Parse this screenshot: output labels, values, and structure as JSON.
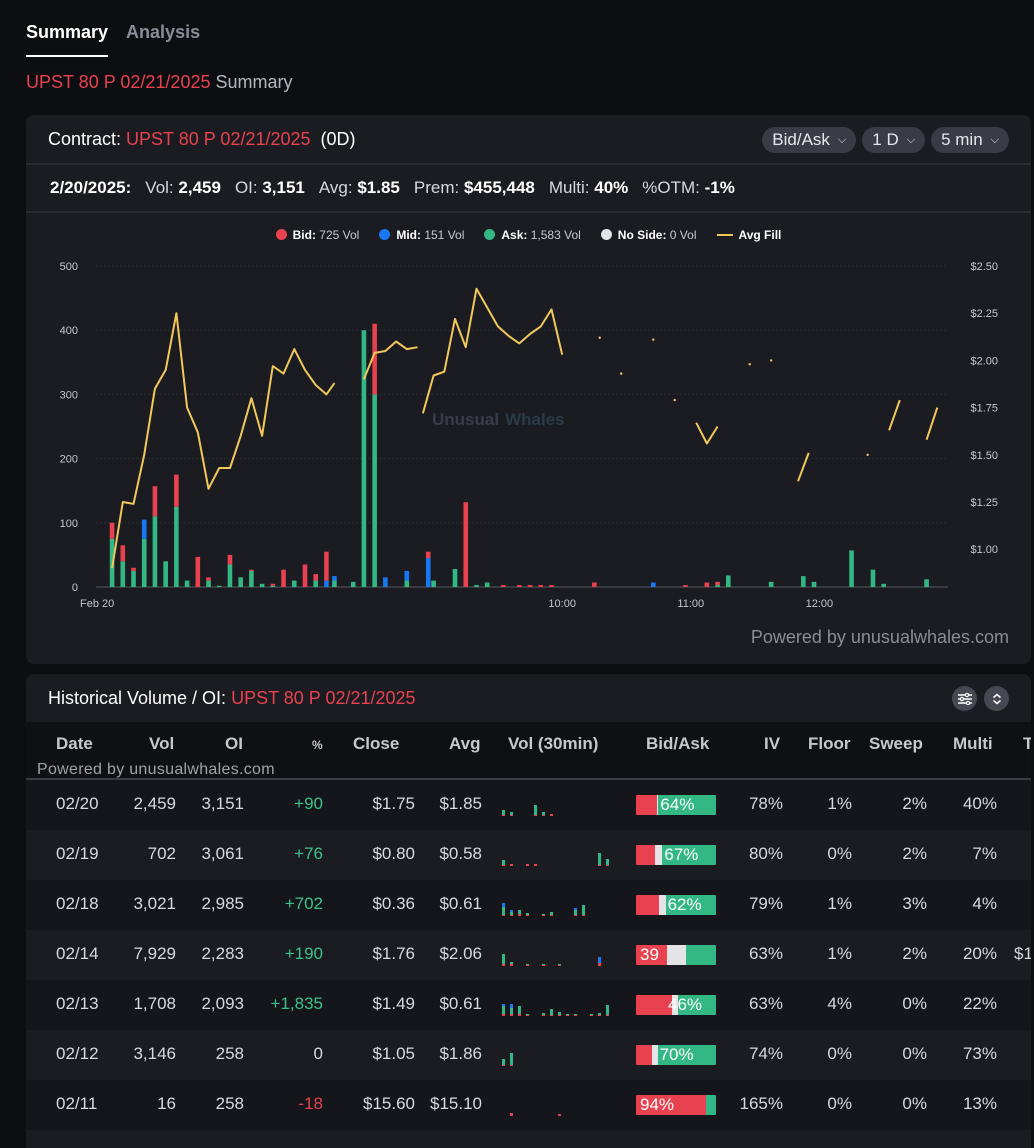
{
  "tabs": [
    "Summary",
    "Analysis"
  ],
  "subtitle": {
    "contract": "UPST 80 P 02/21/2025",
    "label": "Summary"
  },
  "contract_header": {
    "label": "Contract:",
    "contract": "UPST 80 P 02/21/2025",
    "dte": "(0D)",
    "controls": [
      "Bid/Ask",
      "1 D",
      "5 min"
    ]
  },
  "stats": {
    "date": "2/20/2025:",
    "vol_label": "Vol:",
    "vol": "2,459",
    "oi_label": "OI:",
    "oi": "3,151",
    "avg_label": "Avg:",
    "avg": "$1.85",
    "prem_label": "Prem:",
    "prem": "$455,448",
    "multi_label": "Multi:",
    "multi": "40%",
    "otm_label": "%OTM:",
    "otm": "-1%"
  },
  "legend": [
    {
      "key": "Bid:",
      "value": "725 Vol",
      "color": "#e8414f",
      "shape": "dot"
    },
    {
      "key": "Mid:",
      "value": "151 Vol",
      "color": "#1877f2",
      "shape": "dot"
    },
    {
      "key": "Ask:",
      "value": "1,583 Vol",
      "color": "#33b785",
      "shape": "dot"
    },
    {
      "key": "No Side:",
      "value": "0 Vol",
      "color": "#e4e4e8",
      "shape": "dot"
    },
    {
      "key": "Avg Fill",
      "value": "",
      "color": "#f2c85b",
      "shape": "line"
    }
  ],
  "chart_watermark": {
    "a": "Unusual",
    "b": "Whales"
  },
  "chart_data": {
    "type": "bar",
    "title": "",
    "xlabel": "",
    "ylabel": "Volume",
    "ylim": [
      0,
      500
    ],
    "y_ticks": [
      "0",
      "100",
      "200",
      "300",
      "400",
      "500"
    ],
    "y2lim": [
      0.8,
      2.5
    ],
    "y2_ticks": [
      "$1.00",
      "$1.25",
      "$1.50",
      "$1.75",
      "$2.00",
      "$2.25",
      "$2.50"
    ],
    "x_ticks": [
      {
        "t": 0,
        "label": "Feb 20"
      },
      {
        "t": 87,
        "label": "10:00"
      },
      {
        "t": 111,
        "label": "11:00"
      },
      {
        "t": 135,
        "label": "12:00"
      }
    ],
    "x_range": [
      0,
      159
    ],
    "bars": [
      {
        "t": 3,
        "ask": 75,
        "mid": 0,
        "bid": 25
      },
      {
        "t": 5,
        "ask": 40,
        "mid": 0,
        "bid": 25
      },
      {
        "t": 7,
        "ask": 25,
        "mid": 0,
        "bid": 5
      },
      {
        "t": 9,
        "ask": 75,
        "mid": 30,
        "bid": 0
      },
      {
        "t": 11,
        "ask": 110,
        "mid": 0,
        "bid": 47
      },
      {
        "t": 13,
        "ask": 40,
        "mid": 0,
        "bid": 0
      },
      {
        "t": 15,
        "ask": 125,
        "mid": 0,
        "bid": 50
      },
      {
        "t": 17,
        "ask": 10,
        "mid": 0,
        "bid": 0
      },
      {
        "t": 19,
        "ask": 0,
        "mid": 0,
        "bid": 47
      },
      {
        "t": 21,
        "ask": 10,
        "mid": 0,
        "bid": 5
      },
      {
        "t": 23,
        "ask": 2,
        "mid": 0,
        "bid": 0
      },
      {
        "t": 25,
        "ask": 35,
        "mid": 0,
        "bid": 15
      },
      {
        "t": 27,
        "ask": 15,
        "mid": 0,
        "bid": 0
      },
      {
        "t": 29,
        "ask": 25,
        "mid": 0,
        "bid": 2
      },
      {
        "t": 31,
        "ask": 5,
        "mid": 0,
        "bid": 0
      },
      {
        "t": 33,
        "ask": 2,
        "mid": 0,
        "bid": 3
      },
      {
        "t": 35,
        "ask": 0,
        "mid": 0,
        "bid": 27
      },
      {
        "t": 37,
        "ask": 10,
        "mid": 0,
        "bid": 0
      },
      {
        "t": 39,
        "ask": 0,
        "mid": 0,
        "bid": 35
      },
      {
        "t": 41,
        "ask": 10,
        "mid": 0,
        "bid": 10
      },
      {
        "t": 43,
        "ask": 0,
        "mid": 10,
        "bid": 45
      },
      {
        "t": 44.5,
        "ask": 10,
        "mid": 7,
        "bid": 0
      },
      {
        "t": 48,
        "ask": 8,
        "mid": 0,
        "bid": 0
      },
      {
        "t": 50,
        "ask": 400,
        "mid": 0,
        "bid": 0
      },
      {
        "t": 52,
        "ask": 300,
        "mid": 0,
        "bid": 110
      },
      {
        "t": 54,
        "ask": 0,
        "mid": 15,
        "bid": 0
      },
      {
        "t": 58,
        "ask": 10,
        "mid": 15,
        "bid": 0
      },
      {
        "t": 62,
        "ask": 0,
        "mid": 45,
        "bid": 10
      },
      {
        "t": 63,
        "ask": 10,
        "mid": 0,
        "bid": 0
      },
      {
        "t": 67,
        "ask": 28,
        "mid": 0,
        "bid": 0
      },
      {
        "t": 69,
        "ask": 0,
        "mid": 0,
        "bid": 132
      },
      {
        "t": 71,
        "ask": 3,
        "mid": 0,
        "bid": 0
      },
      {
        "t": 73,
        "ask": 7,
        "mid": 0,
        "bid": 0
      },
      {
        "t": 76,
        "ask": 0,
        "mid": 0,
        "bid": 3
      },
      {
        "t": 79,
        "ask": 0,
        "mid": 0,
        "bid": 3
      },
      {
        "t": 81,
        "ask": 0,
        "mid": 0,
        "bid": 3
      },
      {
        "t": 83,
        "ask": 0,
        "mid": 0,
        "bid": 3
      },
      {
        "t": 85,
        "ask": 0,
        "mid": 0,
        "bid": 3
      },
      {
        "t": 93,
        "ask": 0,
        "mid": 0,
        "bid": 7
      },
      {
        "t": 104,
        "ask": 0,
        "mid": 7,
        "bid": 0
      },
      {
        "t": 110,
        "ask": 0,
        "mid": 0,
        "bid": 3
      },
      {
        "t": 114,
        "ask": 0,
        "mid": 0,
        "bid": 7
      },
      {
        "t": 116,
        "ask": 3,
        "mid": 0,
        "bid": 5
      },
      {
        "t": 118,
        "ask": 18,
        "mid": 0,
        "bid": 0
      },
      {
        "t": 126,
        "ask": 8,
        "mid": 0,
        "bid": 0
      },
      {
        "t": 132,
        "ask": 17,
        "mid": 0,
        "bid": 0
      },
      {
        "t": 134,
        "ask": 8,
        "mid": 0,
        "bid": 0
      },
      {
        "t": 141,
        "ask": 57,
        "mid": 0,
        "bid": 0
      },
      {
        "t": 145,
        "ask": 27,
        "mid": 0,
        "bid": 0
      },
      {
        "t": 147,
        "ask": 5,
        "mid": 0,
        "bid": 0
      },
      {
        "t": 155,
        "ask": 12,
        "mid": 0,
        "bid": 0
      }
    ],
    "avg_fill": [
      [
        [
          3,
          0.9
        ],
        [
          5,
          1.25
        ],
        [
          7,
          1.24
        ],
        [
          9,
          1.5
        ],
        [
          11,
          1.85
        ],
        [
          13,
          1.95
        ],
        [
          15,
          2.25
        ],
        [
          17,
          1.75
        ],
        [
          19,
          1.62
        ],
        [
          21,
          1.32
        ],
        [
          23,
          1.43
        ],
        [
          25,
          1.43
        ],
        [
          27,
          1.6
        ],
        [
          29,
          1.8
        ],
        [
          31,
          1.6
        ],
        [
          33,
          1.97
        ],
        [
          35,
          1.93
        ],
        [
          37,
          2.06
        ],
        [
          39,
          1.95
        ],
        [
          41,
          1.87
        ],
        [
          43,
          1.82
        ],
        [
          44.5,
          1.88
        ]
      ],
      [
        [
          50,
          1.9
        ],
        [
          52,
          2.04
        ],
        [
          54,
          2.05
        ],
        [
          56,
          2.1
        ],
        [
          58,
          2.06
        ],
        [
          60,
          2.07
        ]
      ],
      [
        [
          61,
          1.72
        ],
        [
          63,
          1.92
        ],
        [
          65,
          1.94
        ],
        [
          67,
          2.22
        ],
        [
          69,
          2.07
        ],
        [
          71,
          2.38
        ],
        [
          73,
          2.28
        ],
        [
          75,
          2.18
        ],
        [
          77,
          2.13
        ],
        [
          79,
          2.09
        ],
        [
          81,
          2.14
        ],
        [
          83,
          2.18
        ],
        [
          85,
          2.27
        ],
        [
          87,
          2.03
        ]
      ],
      [
        [
          112,
          1.67
        ],
        [
          114,
          1.56
        ],
        [
          116,
          1.65
        ]
      ],
      [
        [
          131,
          1.36
        ],
        [
          133,
          1.51
        ]
      ],
      [
        [
          148,
          1.63
        ],
        [
          150,
          1.79
        ]
      ],
      [
        [
          155,
          1.58
        ],
        [
          157,
          1.75
        ]
      ]
    ],
    "avg_fill_dots": [
      [
        94,
        2.12
      ],
      [
        98,
        1.93
      ],
      [
        104,
        2.11
      ],
      [
        108,
        1.79
      ],
      [
        122,
        1.98
      ],
      [
        126,
        2.0
      ],
      [
        144,
        1.5
      ]
    ]
  },
  "powered_by": "Powered by unusualwhales.com",
  "history": {
    "title": "Historical Volume / OI:",
    "contract": "UPST 80 P 02/21/2025",
    "watermark": "Powered by unusualwhales.com",
    "columns": [
      "Date",
      "Vol",
      "OI",
      "%",
      "Close",
      "Avg",
      "Vol (30min)",
      "Bid/Ask",
      "IV",
      "Floor",
      "Sweep",
      "Multi",
      "T"
    ],
    "rows": [
      {
        "date": "02/20",
        "vol": "2,459",
        "oi": "3,151",
        "chg": "+90",
        "close": "$1.75",
        "avg": "$1.85",
        "ba": {
          "bid": 0.26,
          "mid": 0.02,
          "label": "64%",
          "side": "ask"
        },
        "iv": "78%",
        "floor": "1%",
        "sweep": "2%",
        "multi": "40%",
        "t": "",
        "spark": [
          [
            0,
            1,
            5,
            0
          ],
          [
            1,
            1,
            3,
            0
          ],
          [
            4,
            1,
            10,
            0
          ],
          [
            5,
            1,
            3,
            0
          ],
          [
            6,
            2,
            0,
            0
          ]
        ]
      },
      {
        "date": "02/19",
        "vol": "702",
        "oi": "3,061",
        "chg": "+76",
        "close": "$0.80",
        "avg": "$0.58",
        "ba": {
          "bid": 0.24,
          "mid": 0.09,
          "label": "67%",
          "side": "ask"
        },
        "iv": "80%",
        "floor": "0%",
        "sweep": "2%",
        "multi": "7%",
        "t": "",
        "spark": [
          [
            0,
            1,
            5,
            0
          ],
          [
            1,
            2,
            0,
            0
          ],
          [
            3,
            2,
            0,
            0
          ],
          [
            4,
            2,
            0,
            0
          ],
          [
            12,
            1,
            12,
            0
          ],
          [
            13,
            1,
            6,
            0
          ]
        ]
      },
      {
        "date": "02/18",
        "vol": "3,021",
        "oi": "2,985",
        "chg": "+702",
        "close": "$0.36",
        "avg": "$0.61",
        "ba": {
          "bid": 0.29,
          "mid": 0.08,
          "label": "62%",
          "side": "ask"
        },
        "iv": "79%",
        "floor": "1%",
        "sweep": "3%",
        "multi": "4%",
        "t": "",
        "spark": [
          [
            0,
            1,
            8,
            4
          ],
          [
            1,
            1,
            3,
            2
          ],
          [
            2,
            2,
            4,
            0
          ],
          [
            3,
            1,
            2,
            0
          ],
          [
            5,
            1,
            1,
            0
          ],
          [
            6,
            1,
            3,
            0
          ],
          [
            9,
            1,
            5,
            2
          ],
          [
            10,
            1,
            10,
            0
          ]
        ]
      },
      {
        "date": "02/14",
        "vol": "7,929",
        "oi": "2,283",
        "chg": "+190",
        "close": "$1.76",
        "avg": "$2.06",
        "ba": {
          "bid": 0.39,
          "mid": 0.24,
          "label": "39",
          "side": "bid"
        },
        "iv": "63%",
        "floor": "1%",
        "sweep": "2%",
        "multi": "20%",
        "t": "$1",
        "spark": [
          [
            0,
            2,
            10,
            0
          ],
          [
            1,
            2,
            2,
            0
          ],
          [
            3,
            1,
            1,
            0
          ],
          [
            5,
            1,
            1,
            0
          ],
          [
            7,
            1,
            1,
            0
          ],
          [
            12,
            3,
            0,
            6
          ]
        ]
      },
      {
        "date": "02/13",
        "vol": "1,708",
        "oi": "2,093",
        "chg": "+1,835",
        "close": "$1.49",
        "avg": "$0.61",
        "ba": {
          "bid": 0.45,
          "mid": 0.08,
          "label": "46%",
          "side": "mid"
        },
        "iv": "63%",
        "floor": "4%",
        "sweep": "0%",
        "multi": "22%",
        "t": "",
        "spark": [
          [
            0,
            2,
            8,
            2
          ],
          [
            1,
            2,
            6,
            4
          ],
          [
            2,
            2,
            8,
            0
          ],
          [
            3,
            1,
            1,
            0
          ],
          [
            5,
            1,
            2,
            0
          ],
          [
            6,
            1,
            6,
            0
          ],
          [
            7,
            1,
            3,
            0
          ],
          [
            8,
            1,
            1,
            0
          ],
          [
            9,
            1,
            1,
            0
          ],
          [
            11,
            1,
            1,
            0
          ],
          [
            12,
            1,
            2,
            0
          ],
          [
            13,
            1,
            10,
            0
          ]
        ]
      },
      {
        "date": "02/12",
        "vol": "3,146",
        "oi": "258",
        "chg": "0",
        "close": "$1.05",
        "avg": "$1.86",
        "ba": {
          "bid": 0.2,
          "mid": 0.07,
          "label": "70%",
          "side": "ask"
        },
        "iv": "74%",
        "floor": "0%",
        "sweep": "0%",
        "multi": "73%",
        "t": "",
        "spark": [
          [
            0,
            1,
            6,
            0
          ],
          [
            1,
            1,
            12,
            0
          ]
        ]
      },
      {
        "date": "02/11",
        "vol": "16",
        "oi": "258",
        "chg": "-18",
        "close": "$15.60",
        "avg": "$15.10",
        "ba": {
          "bid": 0.88,
          "mid": 0,
          "label": "94%",
          "side": "bid"
        },
        "iv": "165%",
        "floor": "0%",
        "sweep": "0%",
        "multi": "13%",
        "t": "",
        "spark": [
          [
            1,
            3,
            0,
            0
          ],
          [
            7,
            2,
            0,
            0
          ]
        ]
      }
    ]
  }
}
